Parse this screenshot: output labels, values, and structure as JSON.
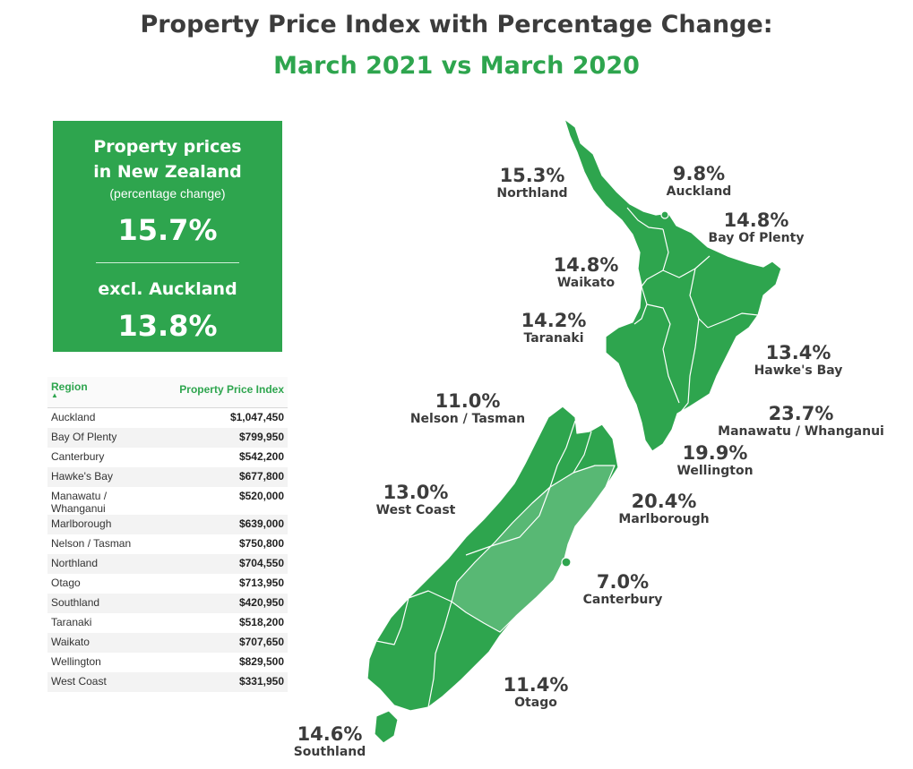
{
  "title": {
    "line1": "Property Price Index with Percentage Change:",
    "line2": "March 2021 vs March 2020"
  },
  "summary": {
    "heading_line1": "Property prices",
    "heading_line2": "in New Zealand",
    "subheading": "(percentage change)",
    "national_change": "15.7%",
    "excl_label": "excl. Auckland",
    "excl_change": "13.8%"
  },
  "table": {
    "col_region": "Region",
    "col_index": "Property Price Index",
    "rows": [
      {
        "region": "Auckland",
        "index": "$1,047,450"
      },
      {
        "region": "Bay Of Plenty",
        "index": "$799,950"
      },
      {
        "region": "Canterbury",
        "index": "$542,200"
      },
      {
        "region": "Hawke's Bay",
        "index": "$677,800"
      },
      {
        "region": "Manawatu / Whanganui",
        "index": "$520,000"
      },
      {
        "region": "Marlborough",
        "index": "$639,000"
      },
      {
        "region": "Nelson / Tasman",
        "index": "$750,800"
      },
      {
        "region": "Northland",
        "index": "$704,550"
      },
      {
        "region": "Otago",
        "index": "$713,950"
      },
      {
        "region": "Southland",
        "index": "$420,950"
      },
      {
        "region": "Taranaki",
        "index": "$518,200"
      },
      {
        "region": "Waikato",
        "index": "$707,650"
      },
      {
        "region": "Wellington",
        "index": "$829,500"
      },
      {
        "region": "West Coast",
        "index": "$331,950"
      }
    ]
  },
  "map": {
    "fill_color": "#2ea54e",
    "highlight_color": "#58b874",
    "labels": {
      "northland": {
        "pct": "15.3%",
        "name": "Northland"
      },
      "auckland": {
        "pct": "9.8%",
        "name": "Auckland"
      },
      "bay_of_plenty": {
        "pct": "14.8%",
        "name": "Bay Of Plenty"
      },
      "waikato": {
        "pct": "14.8%",
        "name": "Waikato"
      },
      "taranaki": {
        "pct": "14.2%",
        "name": "Taranaki"
      },
      "hawkes_bay": {
        "pct": "13.4%",
        "name": "Hawke's Bay"
      },
      "nelson_tasman": {
        "pct": "11.0%",
        "name": "Nelson / Tasman"
      },
      "manawatu": {
        "pct": "23.7%",
        "name": "Manawatu / Whanganui"
      },
      "wellington": {
        "pct": "19.9%",
        "name": "Wellington"
      },
      "west_coast": {
        "pct": "13.0%",
        "name": "West Coast"
      },
      "marlborough": {
        "pct": "20.4%",
        "name": "Marlborough"
      },
      "canterbury": {
        "pct": "7.0%",
        "name": "Canterbury"
      },
      "otago": {
        "pct": "11.4%",
        "name": "Otago"
      },
      "southland": {
        "pct": "14.6%",
        "name": "Southland"
      }
    }
  }
}
